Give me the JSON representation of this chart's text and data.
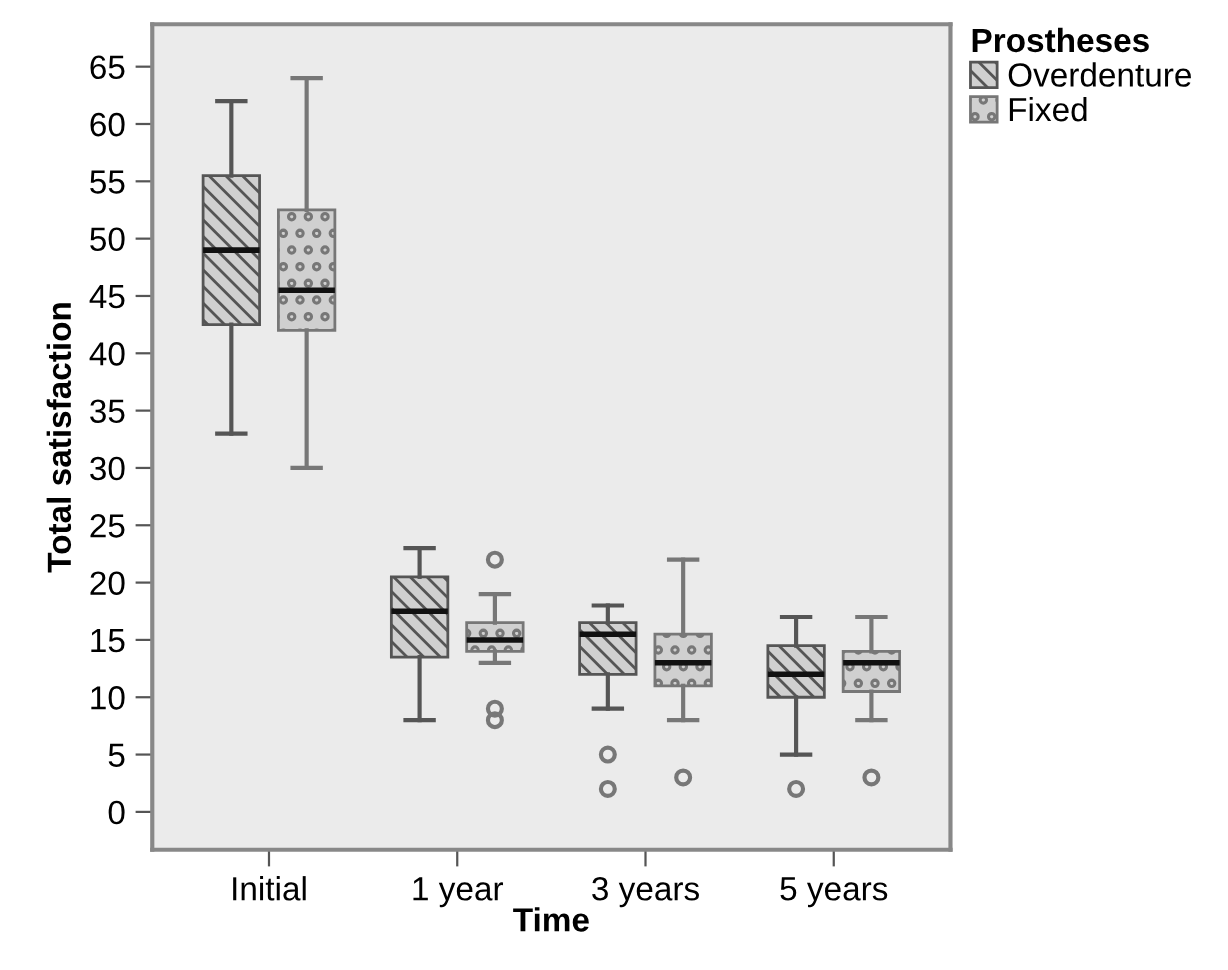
{
  "chart_data": {
    "type": "box",
    "xlabel": "Time",
    "ylabel": "Total satisfaction",
    "legend_title": "Prostheses",
    "legend": "top right",
    "grid": false,
    "categories": [
      "Initial",
      "1 year",
      "3 years",
      "5 years"
    ],
    "ylim": [
      -3.3,
      68.7
    ],
    "yticks": [
      0,
      5,
      10,
      15,
      20,
      25,
      30,
      35,
      40,
      45,
      50,
      55,
      60,
      65
    ],
    "series": [
      {
        "name": "Overdenture",
        "color": "#555555",
        "boxes": [
          {
            "low": 33,
            "q1": 42.5,
            "median": 49,
            "q3": 55.5,
            "high": 62
          },
          {
            "low": 8,
            "q1": 13.5,
            "median": 17.5,
            "q3": 20.5,
            "high": 23
          },
          {
            "low": 9,
            "q1": 12,
            "median": 15.5,
            "q3": 16.5,
            "high": 18,
            "outliers": [
              5,
              2
            ]
          },
          {
            "low": 5,
            "q1": 10,
            "median": 12,
            "q3": 14.5,
            "high": 17,
            "outliers": [
              2
            ]
          }
        ]
      },
      {
        "name": "Fixed",
        "color": "#777777",
        "boxes": [
          {
            "low": 30,
            "q1": 42,
            "median": 45.5,
            "q3": 52.5,
            "high": 64
          },
          {
            "low": 13,
            "q1": 14,
            "median": 15,
            "q3": 16.5,
            "high": 19,
            "outliers": [
              22,
              9,
              8
            ]
          },
          {
            "low": 8,
            "q1": 11,
            "median": 13,
            "q3": 15.5,
            "high": 22,
            "outliers": [
              3
            ]
          },
          {
            "low": 8,
            "q1": 10.5,
            "median": 13,
            "q3": 14,
            "high": 17,
            "outliers": [
              3
            ]
          }
        ]
      }
    ]
  }
}
